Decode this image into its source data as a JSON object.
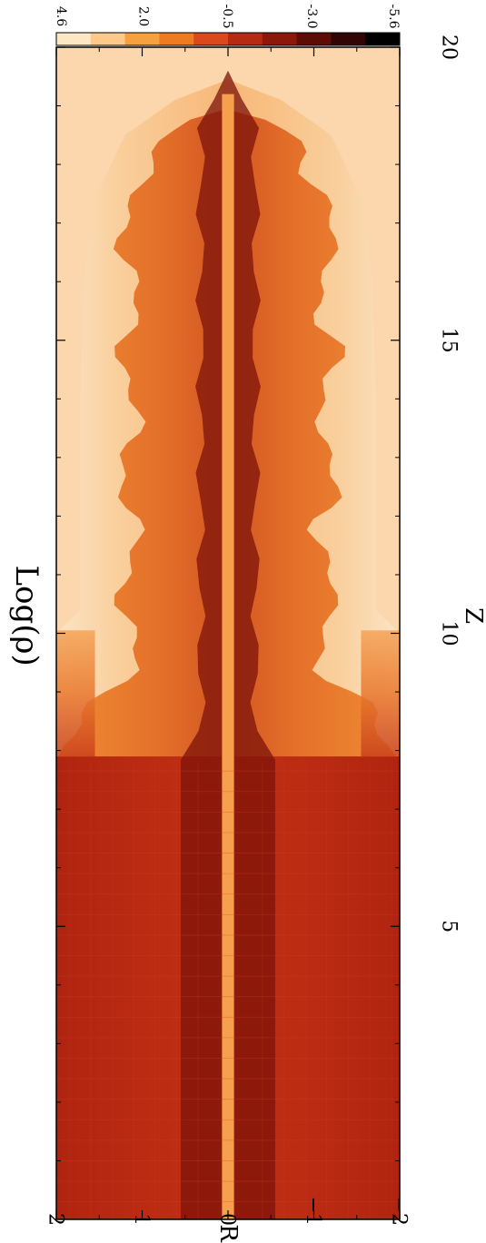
{
  "chart_data": {
    "type": "heatmap",
    "title": "Log(ρ)",
    "xlabel": "Z",
    "ylabel": "R",
    "xlim": [
      0,
      20
    ],
    "ylim": [
      -2,
      2
    ],
    "x_ticks": [
      {
        "value": 5,
        "label": "5"
      },
      {
        "value": 10,
        "label": "10"
      },
      {
        "value": 15,
        "label": "15"
      },
      {
        "value": 20,
        "label": "20"
      }
    ],
    "y_ticks": [
      {
        "value": 2,
        "label": "2"
      },
      {
        "value": 1,
        "label": "1"
      },
      {
        "value": 0,
        "label": "0"
      },
      {
        "value": -1,
        "label": "−1"
      },
      {
        "value": -2,
        "label": "−2"
      }
    ],
    "colorbar": {
      "labels": [
        {
          "value": 4.6,
          "label": "4.6"
        },
        {
          "value": 2.0,
          "label": "2.0"
        },
        {
          "value": -0.5,
          "label": "-0.5"
        },
        {
          "value": -3.0,
          "label": "-3.0"
        },
        {
          "value": -5.6,
          "label": "-5.6"
        }
      ],
      "colors": [
        "#fde6c4",
        "#fbc98a",
        "#f7a040",
        "#ee7a22",
        "#d9491c",
        "#b52a12",
        "#8c180c",
        "#5e0c06",
        "#300503",
        "#000000"
      ]
    },
    "colors": {
      "ambient": "#fcd7ad",
      "jet_body": "#b72612",
      "cocoon_outer": "#fbdcb6",
      "cocoon_inner": "#f49a48",
      "spine": "#7c130a",
      "axis_core": "#f6a04e"
    }
  }
}
